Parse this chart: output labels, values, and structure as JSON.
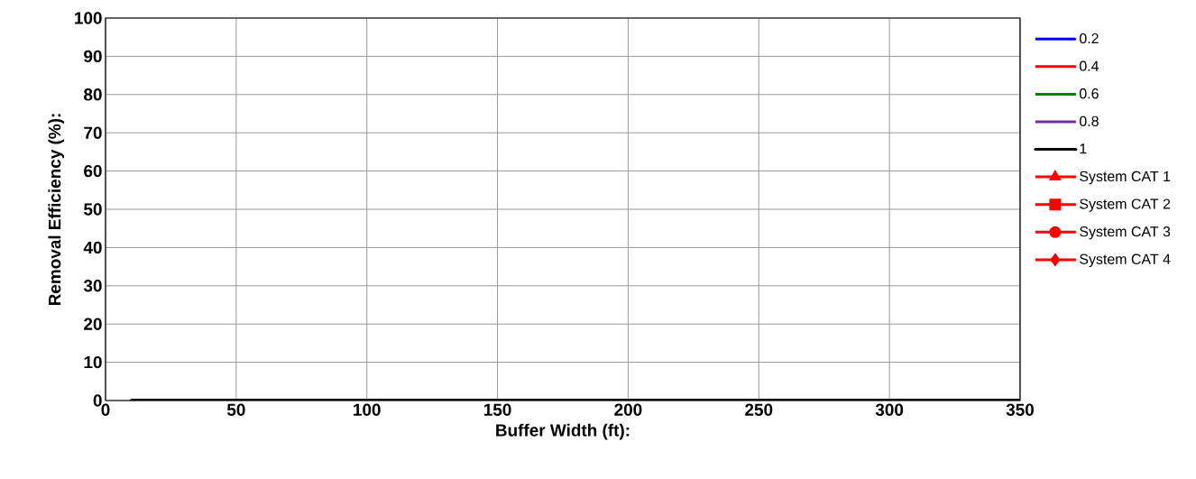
{
  "chart_data": {
    "type": "line",
    "xlabel": "Buffer Width (ft):",
    "ylabel": "Removal Efficiency (%):",
    "xlim": [
      0,
      350
    ],
    "ylim": [
      0,
      100
    ],
    "xticks": [
      0,
      50,
      100,
      150,
      200,
      250,
      300,
      350
    ],
    "yticks": [
      0,
      10,
      20,
      30,
      40,
      50,
      60,
      70,
      80,
      90,
      100
    ],
    "grid": true,
    "legend": "right",
    "series": [
      {
        "name": "0.2",
        "color": "#0000ff"
      },
      {
        "name": "0.4",
        "color": "#ff0000"
      },
      {
        "name": "0.6",
        "color": "#008000"
      },
      {
        "name": "0.8",
        "color": "#7030a0"
      },
      {
        "name": "1",
        "color": "#000000",
        "x": [
          10,
          350
        ],
        "values": [
          0,
          0
        ]
      },
      {
        "name": "System CAT 1",
        "type": "scatter",
        "marker": "triangle",
        "color": "#ff0000"
      },
      {
        "name": "System CAT 2",
        "type": "scatter",
        "marker": "square",
        "color": "#ff0000"
      },
      {
        "name": "System CAT 3",
        "type": "scatter",
        "marker": "circle",
        "color": "#ff0000"
      },
      {
        "name": "System CAT 4",
        "type": "scatter",
        "marker": "diamond",
        "color": "#ff0000"
      }
    ]
  }
}
